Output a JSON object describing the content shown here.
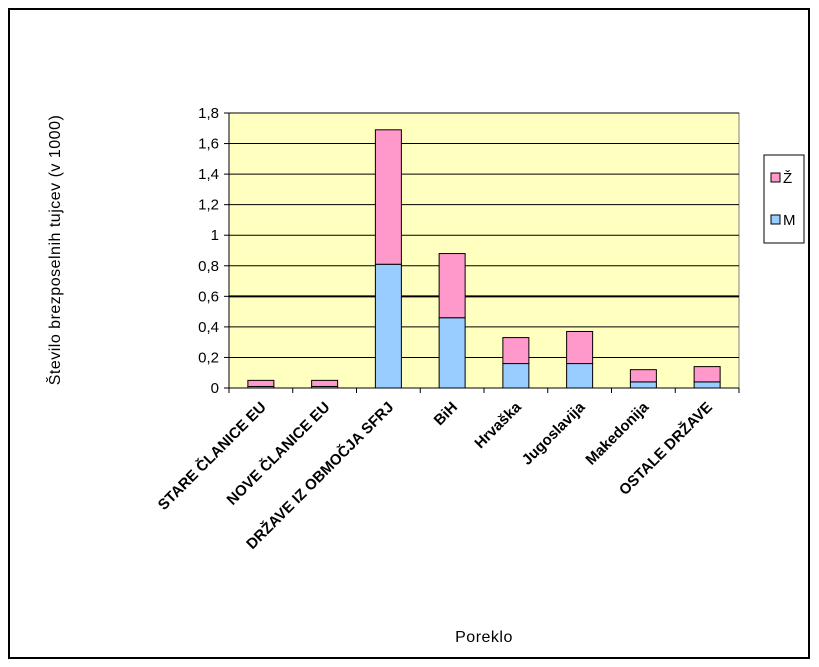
{
  "chart_data": {
    "type": "bar",
    "stacked": true,
    "title": "",
    "xlabel": "Poreklo",
    "ylabel": "Število brezposelnih tujcev (v 1000)",
    "ylim": [
      0,
      1.8
    ],
    "yticks": [
      "0",
      "0,2",
      "0,4",
      "0,6",
      "0,8",
      "1",
      "1,2",
      "1,4",
      "1,6",
      "1,8"
    ],
    "categories": [
      "STARE ČLANICE EU",
      "NOVE ČLANICE EU",
      "DRŽAVE IZ OBMOČJA SFRJ",
      "BiH",
      "Hrvaška",
      "Jugoslavija",
      "Makedonija",
      "OSTALE DRŽAVE"
    ],
    "series": [
      {
        "name": "M",
        "color": "#99ccff",
        "values": [
          0.01,
          0.01,
          0.81,
          0.46,
          0.16,
          0.16,
          0.04,
          0.04
        ]
      },
      {
        "name": "Ž",
        "color": "#ff99cc",
        "values": [
          0.04,
          0.04,
          0.88,
          0.42,
          0.17,
          0.21,
          0.08,
          0.1
        ]
      }
    ],
    "legend_order": [
      "Ž",
      "M"
    ],
    "plot_background": "#ffffc0",
    "grid": true,
    "legend_position": "right"
  }
}
